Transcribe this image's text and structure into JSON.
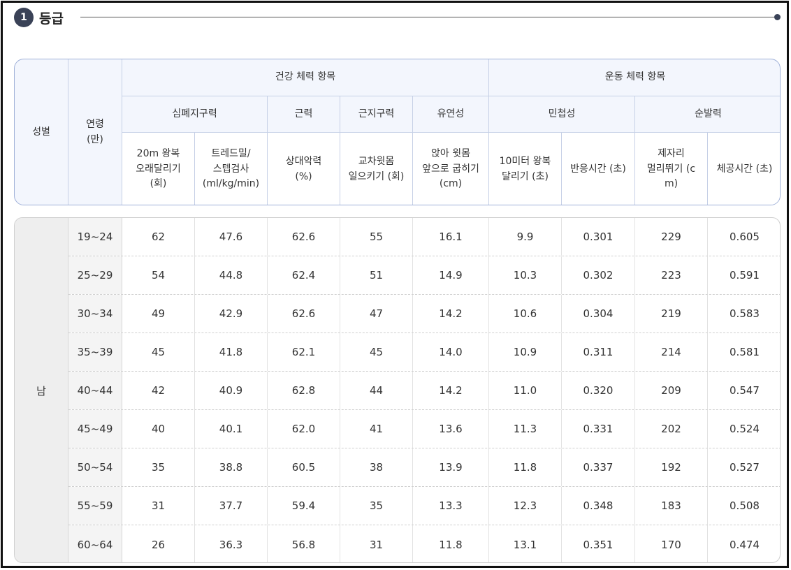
{
  "section": {
    "number": "1",
    "title": "등급"
  },
  "header": {
    "gender": "성별",
    "age_line1": "연령",
    "age_line2": "(만)",
    "group_health": "건강 체력 항목",
    "group_sport": "운동 체력 항목",
    "sub_cardio": "심폐지구력",
    "sub_strength": "근력",
    "sub_endurance": "근지구력",
    "sub_flex": "유연성",
    "sub_agility": "민첩성",
    "sub_power": "순발력",
    "col_pacer": [
      "20m 왕복",
      "오래달리기",
      "(회)"
    ],
    "col_treadmill": [
      "트레드밀/",
      "스텝검사",
      "(ml/kg/min)"
    ],
    "col_grip": [
      "상대악력",
      "(%)"
    ],
    "col_situp": [
      "교차윗몸",
      "일으키기 (회)"
    ],
    "col_sitreach": [
      "앉아 윗몸",
      "앞으로 굽히기",
      "(cm)"
    ],
    "col_shuttle": [
      "10미터 왕복",
      "달리기 (초)"
    ],
    "col_reaction": [
      "반응시간 (초)"
    ],
    "col_jump": [
      "제자리",
      "멀리뛰기 (c",
      "m)"
    ],
    "col_airtime": [
      "체공시간 (초)"
    ]
  },
  "table": {
    "gender": "남",
    "rows": [
      {
        "age": "19~24",
        "v": [
          "62",
          "47.6",
          "62.6",
          "55",
          "16.1",
          "9.9",
          "0.301",
          "229",
          "0.605"
        ]
      },
      {
        "age": "25~29",
        "v": [
          "54",
          "44.8",
          "62.4",
          "51",
          "14.9",
          "10.3",
          "0.302",
          "223",
          "0.591"
        ]
      },
      {
        "age": "30~34",
        "v": [
          "49",
          "42.9",
          "62.6",
          "47",
          "14.2",
          "10.6",
          "0.304",
          "219",
          "0.583"
        ]
      },
      {
        "age": "35~39",
        "v": [
          "45",
          "41.8",
          "62.1",
          "45",
          "14.0",
          "10.9",
          "0.311",
          "214",
          "0.581"
        ]
      },
      {
        "age": "40~44",
        "v": [
          "42",
          "40.9",
          "62.8",
          "44",
          "14.2",
          "11.0",
          "0.320",
          "209",
          "0.547"
        ]
      },
      {
        "age": "45~49",
        "v": [
          "40",
          "40.1",
          "62.0",
          "41",
          "13.6",
          "11.3",
          "0.331",
          "202",
          "0.524"
        ]
      },
      {
        "age": "50~54",
        "v": [
          "35",
          "38.8",
          "60.5",
          "38",
          "13.9",
          "11.8",
          "0.337",
          "192",
          "0.527"
        ]
      },
      {
        "age": "55~59",
        "v": [
          "31",
          "37.7",
          "59.4",
          "35",
          "13.3",
          "12.3",
          "0.348",
          "183",
          "0.508"
        ]
      },
      {
        "age": "60~64",
        "v": [
          "26",
          "36.3",
          "56.8",
          "31",
          "11.8",
          "13.1",
          "0.351",
          "170",
          "0.474"
        ]
      }
    ]
  }
}
